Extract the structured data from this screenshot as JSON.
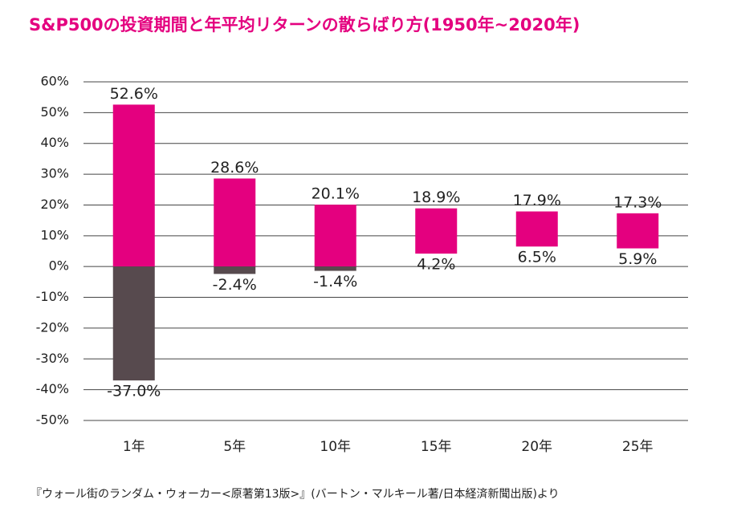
{
  "chart_data": {
    "type": "range",
    "title": "S&P500の投資期間と年平均リターンの散らばり方(1950年~2020年)",
    "categories": [
      "1年",
      "5年",
      "10年",
      "15年",
      "20年",
      "25年"
    ],
    "series": [
      {
        "values": [
          52.6,
          28.6,
          20.1,
          18.9,
          17.9,
          17.3
        ],
        "value_labels": [
          "52.6%",
          "28.6%",
          "20.1%",
          "18.9%",
          "17.9%",
          "17.3%"
        ]
      },
      {
        "values": [
          -37.0,
          -2.4,
          -1.4,
          4.2,
          6.5,
          5.9
        ],
        "value_labels": [
          "-37.0%",
          "-2.4%",
          "-1.4%",
          "4.2%",
          "6.5%",
          "5.9%"
        ]
      }
    ],
    "positive_color": "#e4007f",
    "negative_color": "#574a4e",
    "ylim": [
      -50,
      60
    ],
    "yticks": [
      {
        "value": -50,
        "label": "-50%"
      },
      {
        "value": -40,
        "label": "-40%"
      },
      {
        "value": -30,
        "label": "-30%"
      },
      {
        "value": -20,
        "label": "-20%"
      },
      {
        "value": -10,
        "label": "-10%"
      },
      {
        "value": 0,
        "label": "0%"
      },
      {
        "value": 10,
        "label": "10%"
      },
      {
        "value": 20,
        "label": "20%"
      },
      {
        "value": 30,
        "label": "30%"
      },
      {
        "value": 40,
        "label": "40%"
      },
      {
        "value": 50,
        "label": "50%"
      },
      {
        "value": 60,
        "label": "60%"
      }
    ],
    "grid": true,
    "source": "『ウォール街のランダム・ウォーカー<原著第13版>』(バートン・マルキール著/日本経済新聞出版)より"
  }
}
